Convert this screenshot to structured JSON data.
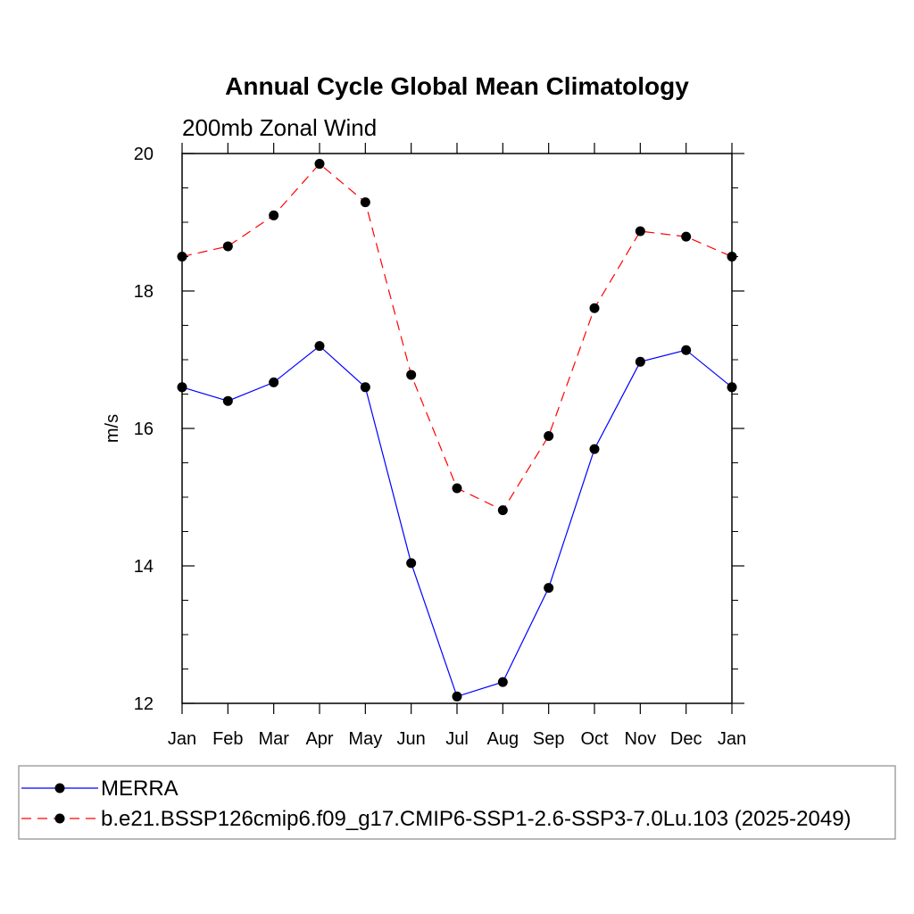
{
  "chart_data": {
    "type": "line",
    "title": "Annual Cycle Global Mean Climatology",
    "subtitle": "200mb Zonal Wind",
    "xlabel": "",
    "ylabel": "m/s",
    "categories": [
      "Jan",
      "Feb",
      "Mar",
      "Apr",
      "May",
      "Jun",
      "Jul",
      "Aug",
      "Sep",
      "Oct",
      "Nov",
      "Dec",
      "Jan"
    ],
    "ylim": [
      12,
      20
    ],
    "yticks": [
      "12",
      "14",
      "16",
      "18",
      "20"
    ],
    "series": [
      {
        "name": "MERRA",
        "color": "#0000ff",
        "dash": "solid",
        "values": [
          16.6,
          16.4,
          16.67,
          17.2,
          16.6,
          14.04,
          12.1,
          12.31,
          13.68,
          15.7,
          16.97,
          17.14,
          16.6
        ]
      },
      {
        "name": "b.e21.BSSP126cmip6.f09_g17.CMIP6-SSP1-2.6-SSP3-7.0Lu.103 (2025-2049)",
        "color": "#ff0000",
        "dash": "dashed",
        "values": [
          18.5,
          18.65,
          19.1,
          19.85,
          19.29,
          16.78,
          15.13,
          14.81,
          15.89,
          17.75,
          18.87,
          18.79,
          18.5
        ]
      }
    ],
    "legend_position": "bottom"
  }
}
